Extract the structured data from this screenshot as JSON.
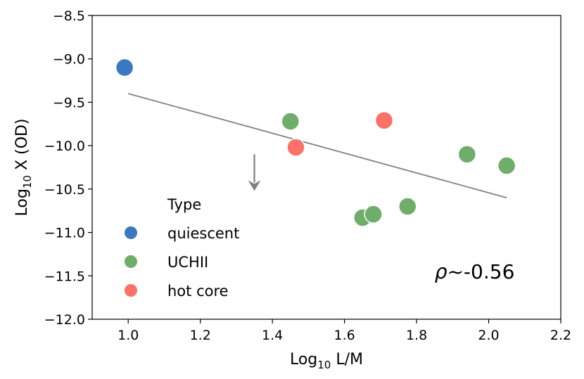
{
  "chart_data": {
    "type": "scatter",
    "xlabel_main": "Log",
    "xlabel_sub": "10",
    "xlabel_rest": " L/M",
    "ylabel_main": "Log",
    "ylabel_sub": "10",
    "ylabel_rest": " X (OD)",
    "xlim": [
      0.9,
      2.2
    ],
    "ylim": [
      -12.0,
      -8.5
    ],
    "xticks": [
      1.0,
      1.2,
      1.4,
      1.6,
      1.8,
      2.0,
      2.2
    ],
    "xtick_labels": [
      "1.0",
      "1.2",
      "1.4",
      "1.6",
      "1.8",
      "2.0",
      "2.2"
    ],
    "yticks": [
      -8.5,
      -9.0,
      -9.5,
      -10.0,
      -10.5,
      -11.0,
      -11.5,
      -12.0
    ],
    "ytick_labels": [
      "−8.5",
      "−9.0",
      "−9.5",
      "−10.0",
      "−10.5",
      "−11.0",
      "−11.5",
      "−12.0"
    ],
    "grid": false,
    "legend": {
      "title": "Type",
      "placement": "lower-left",
      "entries": [
        "quiescent",
        "UCHII",
        "hot core"
      ]
    },
    "series": [
      {
        "name": "quiescent",
        "color": "#3a78c2",
        "points": [
          [
            0.99,
            -9.1
          ]
        ]
      },
      {
        "name": "UCHII",
        "color": "#6fae6a",
        "points": [
          [
            1.45,
            -9.72
          ],
          [
            1.65,
            -10.83
          ],
          [
            1.68,
            -10.79
          ],
          [
            1.775,
            -10.7
          ],
          [
            1.94,
            -10.1
          ],
          [
            2.05,
            -10.23
          ]
        ]
      },
      {
        "name": "hot core",
        "color": "#fa7268",
        "points": [
          [
            1.465,
            -10.02
          ],
          [
            1.71,
            -9.71
          ]
        ]
      }
    ],
    "fit_line": {
      "color": "#808080",
      "points": [
        [
          1.0,
          -9.4
        ],
        [
          2.05,
          -10.6
        ]
      ]
    },
    "upper_limit_arrow": {
      "color": "#808080",
      "x": 1.35,
      "y_from": -10.1,
      "y_to": -10.52
    },
    "annotation": {
      "symbol": "ρ",
      "text": "~-0.56",
      "x": 1.85,
      "y": -11.45
    }
  }
}
